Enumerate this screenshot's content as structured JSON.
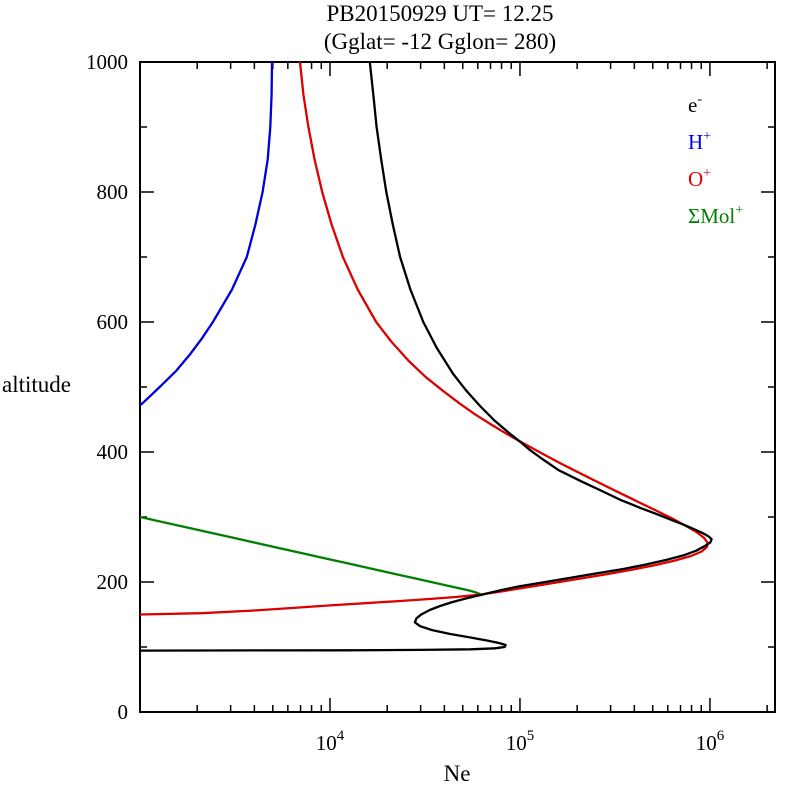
{
  "chart_data": {
    "type": "line",
    "title": "PB20150929 UT= 12.25 (Gglat= -12 Gglon= 280)",
    "title_line1": "PB20150929   UT=  12.25",
    "title_line2": "(Gglat= -12   Gglon=  280)",
    "xlabel": "Ne",
    "ylabel": "altitude",
    "x_scale": "log10",
    "xlim": [
      1000,
      2200000
    ],
    "ylim": [
      0,
      1000
    ],
    "grid": false,
    "legend_position": "top-right-inside",
    "x_major_ticks": [
      10000,
      100000,
      1000000
    ],
    "x_major_tick_labels": [
      {
        "base": "10",
        "exp": "4"
      },
      {
        "base": "10",
        "exp": "5"
      },
      {
        "base": "10",
        "exp": "6"
      }
    ],
    "y_major_ticks": [
      0,
      200,
      400,
      600,
      800,
      1000
    ],
    "y_major_tick_labels": [
      "0",
      "200",
      "400",
      "600",
      "800",
      "1000"
    ],
    "y_minor_step": 100,
    "series": [
      {
        "name": "electron density",
        "legend_label": "e",
        "legend_sup": "-",
        "color": "#000000",
        "points": [
          [
            1000,
            16200
          ],
          [
            950,
            16900
          ],
          [
            900,
            17600
          ],
          [
            850,
            18600
          ],
          [
            800,
            19800
          ],
          [
            750,
            21400
          ],
          [
            700,
            23400
          ],
          [
            650,
            26500
          ],
          [
            600,
            31000
          ],
          [
            560,
            36500
          ],
          [
            520,
            44500
          ],
          [
            495,
            52000
          ],
          [
            470,
            62000
          ],
          [
            449,
            73000
          ],
          [
            430,
            87000
          ],
          [
            415,
            101000
          ],
          [
            403,
            113000
          ],
          [
            390,
            130000
          ],
          [
            372,
            160000
          ],
          [
            355,
            210000
          ],
          [
            340,
            270000
          ],
          [
            326,
            340000
          ],
          [
            314,
            430000
          ],
          [
            305,
            520000
          ],
          [
            296,
            620000
          ],
          [
            288,
            730000
          ],
          [
            281,
            830000
          ],
          [
            275,
            920000
          ],
          [
            270,
            985000
          ],
          [
            266,
            1020000
          ],
          [
            261,
            1005000
          ],
          [
            255,
            935000
          ],
          [
            248,
            845000
          ],
          [
            241,
            725000
          ],
          [
            234,
            590000
          ],
          [
            227,
            460000
          ],
          [
            220,
            350000
          ],
          [
            213,
            250000
          ],
          [
            206,
            180000
          ],
          [
            199,
            130000
          ],
          [
            193,
            98000
          ],
          [
            187,
            78000
          ],
          [
            181,
            64000
          ],
          [
            175,
            52500
          ],
          [
            169,
            44000
          ],
          [
            163,
            38000
          ],
          [
            157,
            33500
          ],
          [
            150,
            30200
          ],
          [
            144,
            28500
          ],
          [
            138,
            28000
          ],
          [
            132,
            29800
          ],
          [
            126,
            34500
          ],
          [
            120,
            43000
          ],
          [
            115,
            54000
          ],
          [
            110,
            67000
          ],
          [
            106,
            78000
          ],
          [
            103,
            84000
          ],
          [
            100,
            83000
          ],
          [
            98,
            74000
          ],
          [
            96.5,
            55000
          ],
          [
            95.5,
            30000
          ],
          [
            95,
            12000
          ],
          [
            94.7,
            4000
          ],
          [
            94.5,
            1000
          ]
        ]
      },
      {
        "name": "H+ ion density",
        "legend_label": "H",
        "legend_sup": "+",
        "color": "#0000dd",
        "points": [
          [
            1000,
            4950
          ],
          [
            950,
            4930
          ],
          [
            900,
            4850
          ],
          [
            850,
            4700
          ],
          [
            800,
            4420
          ],
          [
            750,
            4050
          ],
          [
            700,
            3650
          ],
          [
            650,
            3050
          ],
          [
            600,
            2420
          ],
          [
            575,
            2120
          ],
          [
            550,
            1830
          ],
          [
            525,
            1550
          ],
          [
            500,
            1270
          ],
          [
            485,
            1120
          ],
          [
            475,
            1030
          ],
          [
            472,
            1000
          ]
        ]
      },
      {
        "name": "O+ ion density",
        "legend_label": "O",
        "legend_sup": "+",
        "color": "#dd0000",
        "points": [
          [
            1000,
            6950
          ],
          [
            950,
            7250
          ],
          [
            900,
            7700
          ],
          [
            850,
            8300
          ],
          [
            800,
            9100
          ],
          [
            750,
            10200
          ],
          [
            700,
            11700
          ],
          [
            650,
            14000
          ],
          [
            600,
            17500
          ],
          [
            570,
            21000
          ],
          [
            540,
            26000
          ],
          [
            515,
            32000
          ],
          [
            495,
            39000
          ],
          [
            475,
            48000
          ],
          [
            458,
            58000
          ],
          [
            443,
            70000
          ],
          [
            428,
            85000
          ],
          [
            413,
            105000
          ],
          [
            398,
            130000
          ],
          [
            383,
            162000
          ],
          [
            368,
            205000
          ],
          [
            353,
            260000
          ],
          [
            338,
            330000
          ],
          [
            323,
            420000
          ],
          [
            310,
            520000
          ],
          [
            298,
            630000
          ],
          [
            287,
            740000
          ],
          [
            277,
            850000
          ],
          [
            268,
            930000
          ],
          [
            261,
            970000
          ],
          [
            254,
            965000
          ],
          [
            247,
            905000
          ],
          [
            240,
            795000
          ],
          [
            233,
            655000
          ],
          [
            226,
            515000
          ],
          [
            219,
            390000
          ],
          [
            212,
            285000
          ],
          [
            205,
            205000
          ],
          [
            198,
            147000
          ],
          [
            192,
            109000
          ],
          [
            186,
            82000
          ],
          [
            181,
            63000
          ],
          [
            177,
            46000
          ],
          [
            174,
            34000
          ],
          [
            171,
            24000
          ],
          [
            168,
            16500
          ],
          [
            164,
            10000
          ],
          [
            160,
            6300
          ],
          [
            156,
            3900
          ],
          [
            152,
            2100
          ],
          [
            150,
            1000
          ]
        ]
      },
      {
        "name": "molecular ion density",
        "legend_label": "ΣMol",
        "legend_sup": "+",
        "color": "#007f00",
        "points": [
          [
            300,
            1000
          ],
          [
            292,
            1330
          ],
          [
            284,
            1760
          ],
          [
            276,
            2340
          ],
          [
            268,
            3100
          ],
          [
            260,
            4100
          ],
          [
            252,
            5450
          ],
          [
            244,
            7200
          ],
          [
            236,
            9550
          ],
          [
            228,
            12700
          ],
          [
            220,
            16800
          ],
          [
            212,
            22300
          ],
          [
            205,
            28600
          ],
          [
            199,
            35300
          ],
          [
            194,
            42000
          ],
          [
            190,
            48500
          ],
          [
            187,
            54000
          ],
          [
            184,
            58500
          ],
          [
            182,
            61000
          ],
          [
            180,
            62500
          ]
        ]
      }
    ]
  }
}
